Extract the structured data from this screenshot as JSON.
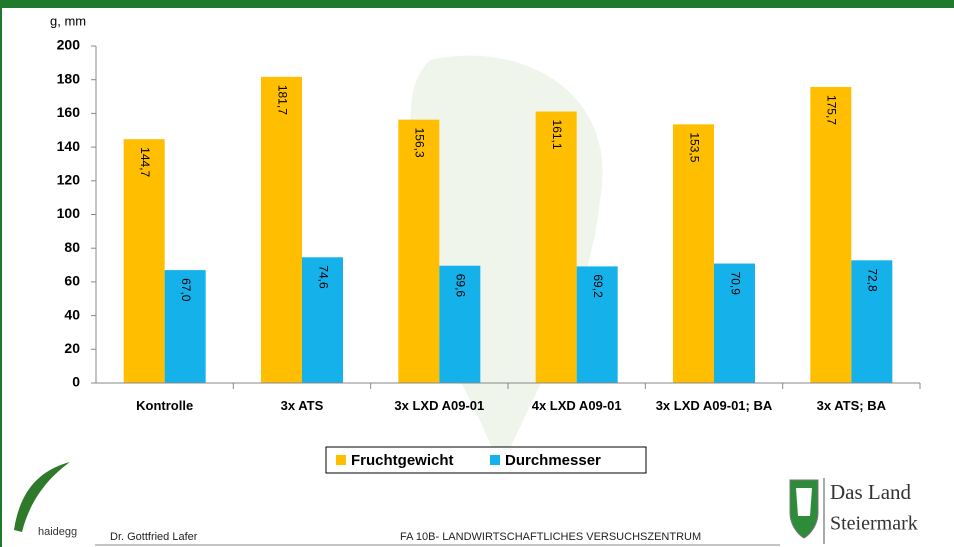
{
  "chart_data": {
    "type": "bar",
    "y_label": "g, mm",
    "categories": [
      "Kontrolle",
      "3x ATS",
      "3x LXD A09-01",
      "4x LXD A09-01",
      "3x LXD A09-01; BA",
      "3x ATS; BA"
    ],
    "series": [
      {
        "name": "Fruchtgewicht",
        "color": "#ffbf00",
        "values": [
          144.7,
          181.7,
          156.3,
          161.1,
          153.5,
          175.7
        ],
        "value_labels": [
          "144,7",
          "181,7",
          "156,3",
          "161,1",
          "153,5",
          "175,7"
        ]
      },
      {
        "name": "Durchmesser",
        "color": "#14b1ea",
        "values": [
          67.0,
          74.6,
          69.6,
          69.2,
          70.9,
          72.8
        ],
        "value_labels": [
          "67,0",
          "74,6",
          "69,6",
          "69,2",
          "70,9",
          "72,8"
        ]
      }
    ],
    "ylim": [
      0,
      200
    ],
    "yticks": [
      0,
      20,
      40,
      60,
      80,
      100,
      120,
      140,
      160,
      180,
      200
    ],
    "grid": false
  },
  "footer": {
    "author": "Dr. Gottfried Lafer",
    "institution": "FA 10B- LANDWIRTSCHAFTLICHES VERSUCHSZENTRUM",
    "logo_left": "haidegg",
    "logo_right_line1": "Das Land",
    "logo_right_line2": "Steiermark"
  }
}
